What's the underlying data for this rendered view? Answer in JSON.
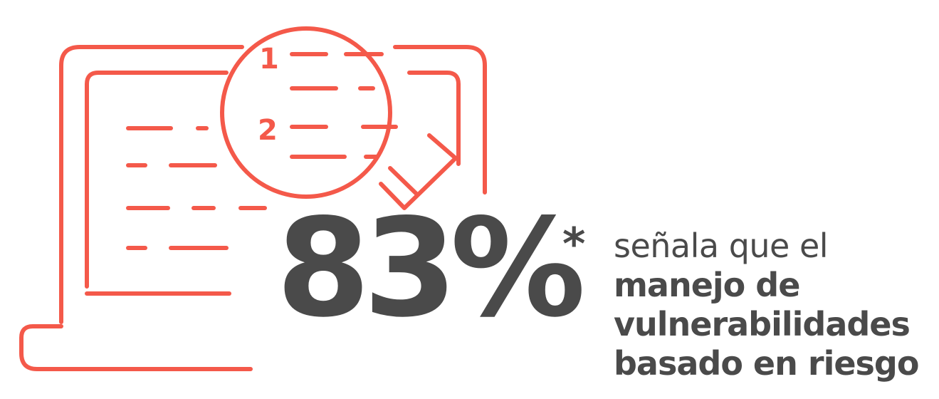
{
  "colors": {
    "accent": "#f4594a",
    "text": "#4a4a4a",
    "background": "#ffffff"
  },
  "illustration": {
    "icon": "laptop-magnifier-icon",
    "rank_1": "1",
    "rank_2": "2"
  },
  "stat": {
    "value": "83%",
    "footnote_marker": "*"
  },
  "caption": {
    "line1": "señala que el",
    "line2": "manejo de",
    "line3": "vulnerabilidades",
    "line4": "basado en riesgo"
  }
}
